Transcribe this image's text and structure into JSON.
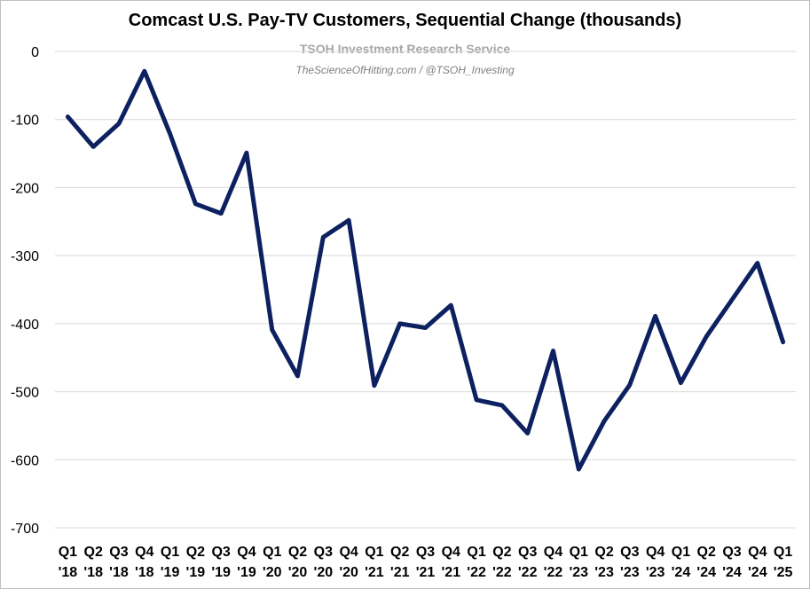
{
  "chart_data": {
    "type": "line",
    "title": "Comcast U.S. Pay-TV Customers, Sequential Change (thousands)",
    "watermark": "TSOH Investment Research Service",
    "watermark_sub": "TheScienceOfHitting.com / @TSOH_Investing",
    "xlabel": "",
    "ylabel": "",
    "ylim": [
      -700,
      0
    ],
    "yticks": [
      0,
      -100,
      -200,
      -300,
      -400,
      -500,
      -600,
      -700
    ],
    "ytick_labels": [
      "0",
      "-100",
      "-200",
      "-300",
      "-400",
      "-500",
      "-600",
      "-700"
    ],
    "grid": true,
    "line_color": "#0d2060",
    "categories": [
      [
        "Q1",
        "'18"
      ],
      [
        "Q2",
        "'18"
      ],
      [
        "Q3",
        "'18"
      ],
      [
        "Q4",
        "'18"
      ],
      [
        "Q1",
        "'19"
      ],
      [
        "Q2",
        "'19"
      ],
      [
        "Q3",
        "'19"
      ],
      [
        "Q4",
        "'19"
      ],
      [
        "Q1",
        "'20"
      ],
      [
        "Q2",
        "'20"
      ],
      [
        "Q3",
        "'20"
      ],
      [
        "Q4",
        "'20"
      ],
      [
        "Q1",
        "'21"
      ],
      [
        "Q2",
        "'21"
      ],
      [
        "Q3",
        "'21"
      ],
      [
        "Q4",
        "'21"
      ],
      [
        "Q1",
        "'22"
      ],
      [
        "Q2",
        "'22"
      ],
      [
        "Q3",
        "'22"
      ],
      [
        "Q4",
        "'22"
      ],
      [
        "Q1",
        "'23"
      ],
      [
        "Q2",
        "'23"
      ],
      [
        "Q3",
        "'23"
      ],
      [
        "Q4",
        "'23"
      ],
      [
        "Q1",
        "'24"
      ],
      [
        "Q2",
        "'24"
      ],
      [
        "Q3",
        "'24"
      ],
      [
        "Q4",
        "'24"
      ],
      [
        "Q1",
        "'25"
      ]
    ],
    "series": [
      {
        "values": [
          -96,
          -140,
          -106,
          -29,
          -121,
          -224,
          -238,
          -149,
          -409,
          -477,
          -273,
          -248,
          -491,
          -400,
          -406,
          -373,
          -512,
          -520,
          -561,
          -440,
          -614,
          -543,
          -490,
          -389,
          -487,
          -419,
          -365,
          -311,
          -427
        ]
      }
    ]
  }
}
